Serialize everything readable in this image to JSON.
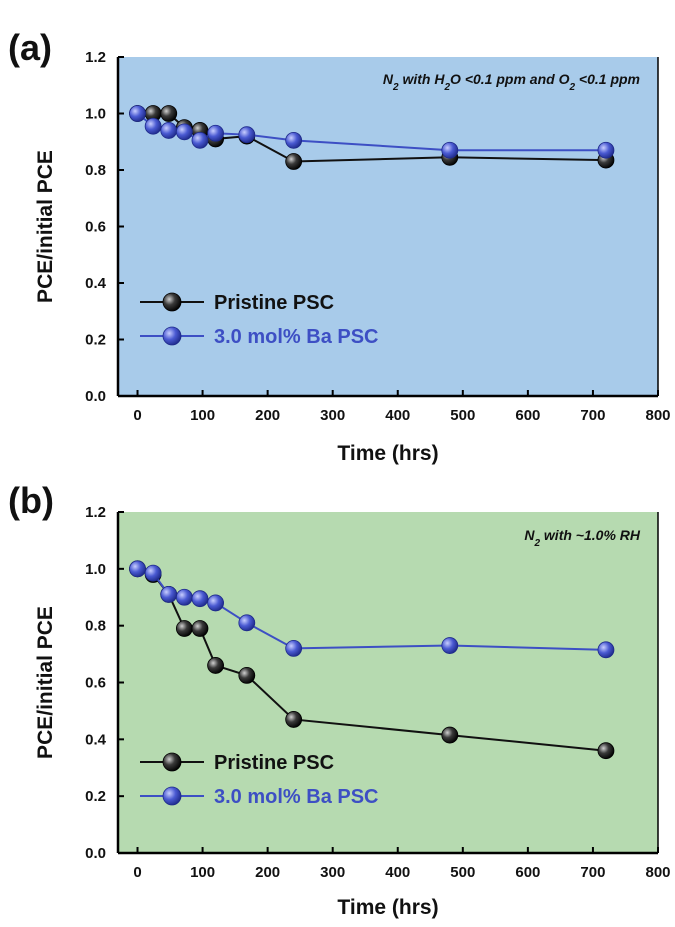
{
  "panels": [
    {
      "label": "(a)",
      "annotation": {
        "main": "N",
        "sub": "2",
        "rest": [
          {
            "t": " with H"
          },
          {
            "t": "2",
            "sub": true
          },
          {
            "t": "O <0.1 ppm and O"
          },
          {
            "t": "2",
            "sub": true
          },
          {
            "t": " <0.1 ppm"
          }
        ]
      },
      "background": "#a8cbea"
    },
    {
      "label": "(b)",
      "annotation": {
        "main": "N",
        "sub": "2",
        "rest": [
          {
            "t": " with ~1.0% RH"
          }
        ]
      },
      "background": "#b6dab0"
    }
  ],
  "chart_data": [
    {
      "type": "line",
      "xlabel": "Time (hrs)",
      "ylabel": "PCE/initial PCE",
      "xlim": [
        -30,
        800
      ],
      "ylim": [
        0.0,
        1.2
      ],
      "xticks": [
        0,
        100,
        200,
        300,
        400,
        500,
        600,
        700,
        800
      ],
      "yticks": [
        0.0,
        0.2,
        0.4,
        0.6,
        0.8,
        1.0,
        1.2
      ],
      "ytick_labels": [
        "0.0",
        "0.2",
        "0.4",
        "0.6",
        "0.8",
        "1.0",
        "1.2"
      ],
      "legend_position": "lower-left",
      "series": [
        {
          "name": "Pristine PSC",
          "color": "#111111",
          "x": [
            0,
            24,
            48,
            72,
            96,
            120,
            168,
            240,
            480,
            720
          ],
          "y": [
            1.0,
            1.0,
            1.0,
            0.95,
            0.94,
            0.91,
            0.92,
            0.83,
            0.845,
            0.835
          ]
        },
        {
          "name": "3.0 mol% Ba PSC",
          "color": "#3d4fc4",
          "x": [
            0,
            24,
            48,
            72,
            96,
            120,
            168,
            240,
            480,
            720
          ],
          "y": [
            1.0,
            0.955,
            0.94,
            0.935,
            0.905,
            0.93,
            0.925,
            0.905,
            0.87,
            0.87
          ]
        }
      ]
    },
    {
      "type": "line",
      "xlabel": "Time (hrs)",
      "ylabel": "PCE/initial PCE",
      "xlim": [
        -30,
        800
      ],
      "ylim": [
        0.0,
        1.2
      ],
      "xticks": [
        0,
        100,
        200,
        300,
        400,
        500,
        600,
        700,
        800
      ],
      "yticks": [
        0.0,
        0.2,
        0.4,
        0.6,
        0.8,
        1.0,
        1.2
      ],
      "ytick_labels": [
        "0.0",
        "0.2",
        "0.4",
        "0.6",
        "0.8",
        "1.0",
        "1.2"
      ],
      "legend_position": "lower-left",
      "series": [
        {
          "name": "Pristine PSC",
          "color": "#111111",
          "x": [
            0,
            24,
            48,
            72,
            96,
            120,
            168,
            240,
            480,
            720
          ],
          "y": [
            1.0,
            0.98,
            0.91,
            0.79,
            0.79,
            0.66,
            0.625,
            0.47,
            0.415,
            0.36
          ]
        },
        {
          "name": "3.0 mol% Ba PSC",
          "color": "#3d4fc4",
          "x": [
            0,
            24,
            48,
            72,
            96,
            120,
            168,
            240,
            480,
            720
          ],
          "y": [
            1.0,
            0.985,
            0.91,
            0.9,
            0.895,
            0.88,
            0.81,
            0.72,
            0.73,
            0.715
          ]
        }
      ]
    }
  ]
}
